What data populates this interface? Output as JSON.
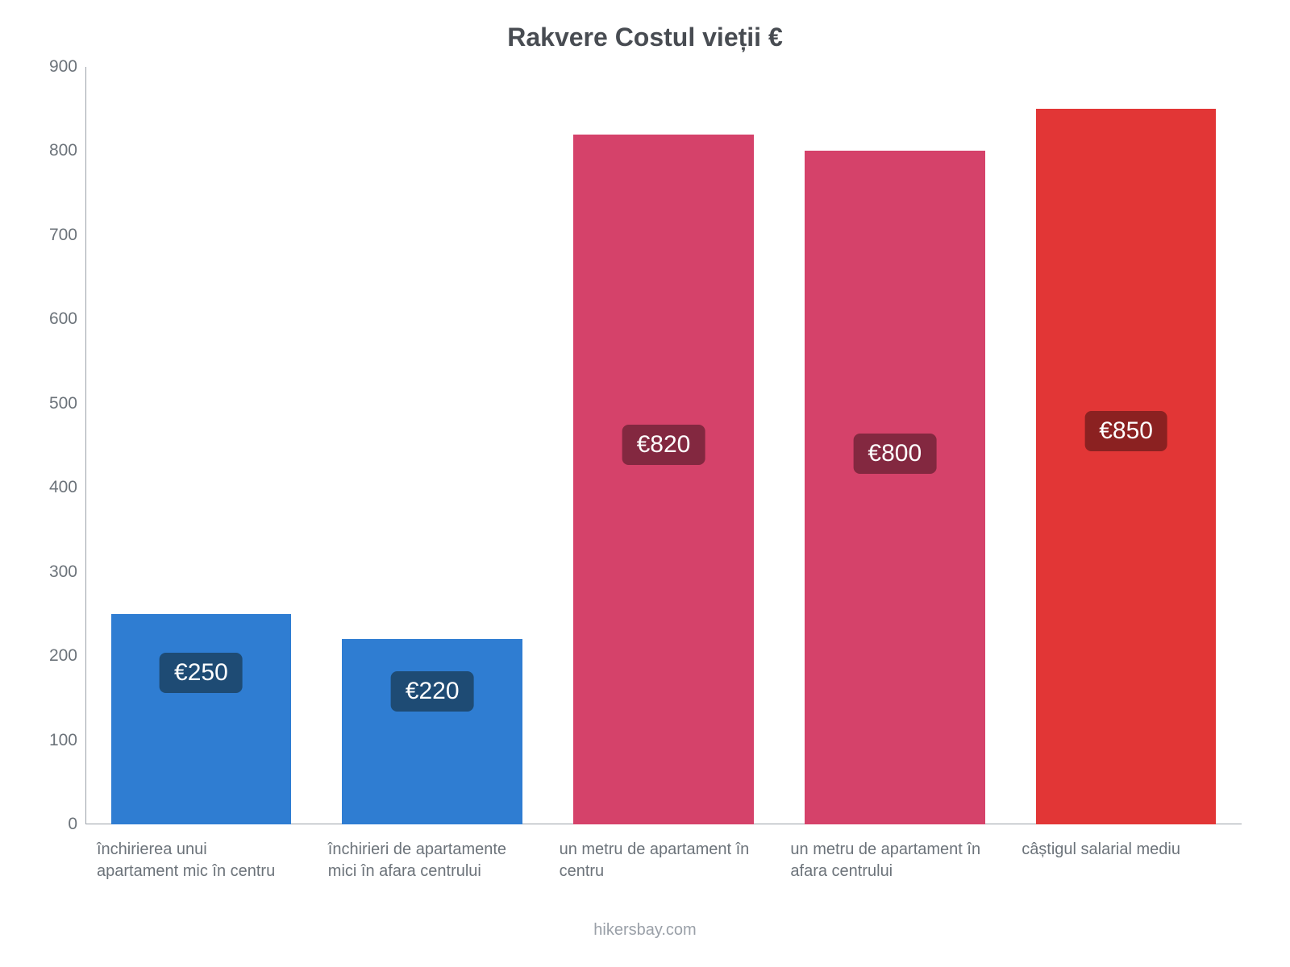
{
  "chart": {
    "type": "bar",
    "title": "Rakvere Costul vieții €",
    "title_fontsize": 32,
    "title_color": "#484c52",
    "background_color": "#ffffff",
    "axis_color": "#9aa0a8",
    "label_color": "#6c737a",
    "label_fontsize": 20,
    "tick_fontsize": 21,
    "value_badge_fontsize": 30,
    "ylim": [
      0,
      900
    ],
    "ytick_step": 100,
    "bar_width_pct": 78,
    "bars": [
      {
        "label": "închirierea unui apartament mic în centru",
        "value": 250,
        "display_value": "€250",
        "bar_color": "#2f7dd2",
        "badge_bg": "#1e4b74",
        "badge_text": "#ffffff"
      },
      {
        "label": "închirieri de apartamente mici în afara centrului",
        "value": 220,
        "display_value": "€220",
        "bar_color": "#2f7dd2",
        "badge_bg": "#1e4b74",
        "badge_text": "#ffffff"
      },
      {
        "label": "un metru de apartament în centru",
        "value": 820,
        "display_value": "€820",
        "bar_color": "#d5426a",
        "badge_bg": "#832840",
        "badge_text": "#ffffff"
      },
      {
        "label": "un metru de apartament în afara centrului",
        "value": 800,
        "display_value": "€800",
        "bar_color": "#d5426a",
        "badge_bg": "#832840",
        "badge_text": "#ffffff"
      },
      {
        "label": "câștigul salarial mediu",
        "value": 850,
        "display_value": "€850",
        "bar_color": "#e23636",
        "badge_bg": "#8b2121",
        "badge_text": "#ffffff"
      }
    ],
    "attribution": "hikersbay.com"
  }
}
